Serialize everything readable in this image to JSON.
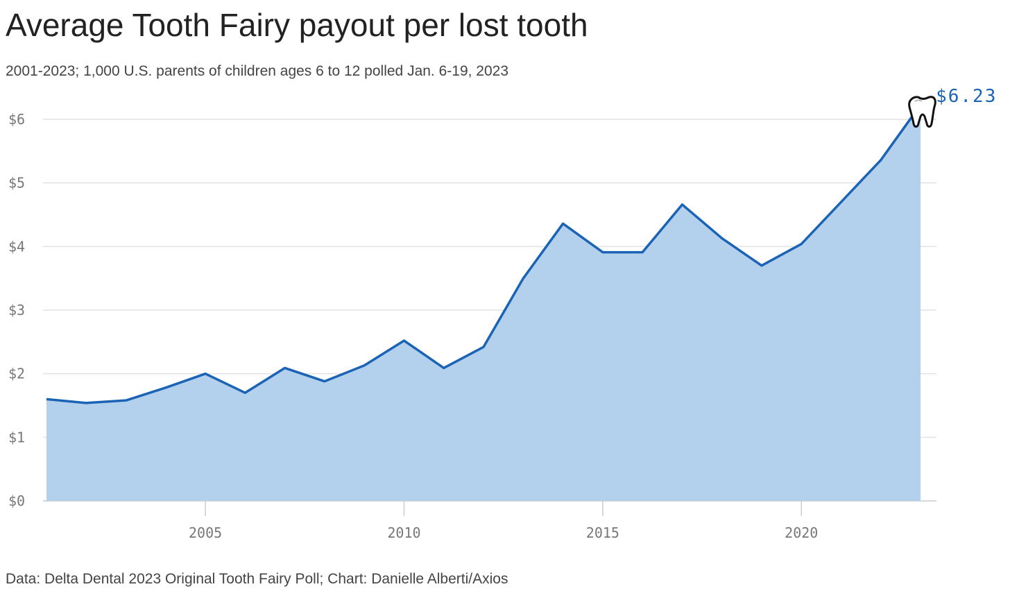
{
  "chart_data": {
    "type": "area",
    "title": "Average Tooth Fairy payout per lost tooth",
    "subtitle": "2001-2023; 1,000 U.S. parents of children ages 6 to 12 polled Jan. 6-19, 2023",
    "source": "Data: Delta Dental 2023 Original Tooth Fairy Poll; Chart: Danielle Alberti/Axios",
    "annotation": "$6.23",
    "x": [
      2001,
      2002,
      2003,
      2004,
      2005,
      2006,
      2007,
      2008,
      2009,
      2010,
      2011,
      2012,
      2013,
      2014,
      2015,
      2016,
      2017,
      2018,
      2019,
      2020,
      2021,
      2022,
      2023
    ],
    "values": [
      1.6,
      1.54,
      1.58,
      1.78,
      2.0,
      1.7,
      2.09,
      1.88,
      2.13,
      2.52,
      2.09,
      2.42,
      3.5,
      4.36,
      3.91,
      3.91,
      4.66,
      4.13,
      3.7,
      4.04,
      4.7,
      5.36,
      6.23
    ],
    "color": "#1a63b5",
    "fill": "#b3d1ec",
    "xlim": [
      2001,
      2023.4
    ],
    "xticks": [
      2005,
      2010,
      2015,
      2020
    ],
    "ylim": [
      0,
      6
    ],
    "yticks": [
      {
        "value": 0,
        "label": "$0"
      },
      {
        "value": 1,
        "label": "$1"
      },
      {
        "value": 2,
        "label": "$2"
      },
      {
        "value": 3,
        "label": "$3"
      },
      {
        "value": 4,
        "label": "$4"
      },
      {
        "value": 5,
        "label": "$5"
      },
      {
        "value": 6,
        "label": "$6"
      }
    ],
    "grid": true
  }
}
